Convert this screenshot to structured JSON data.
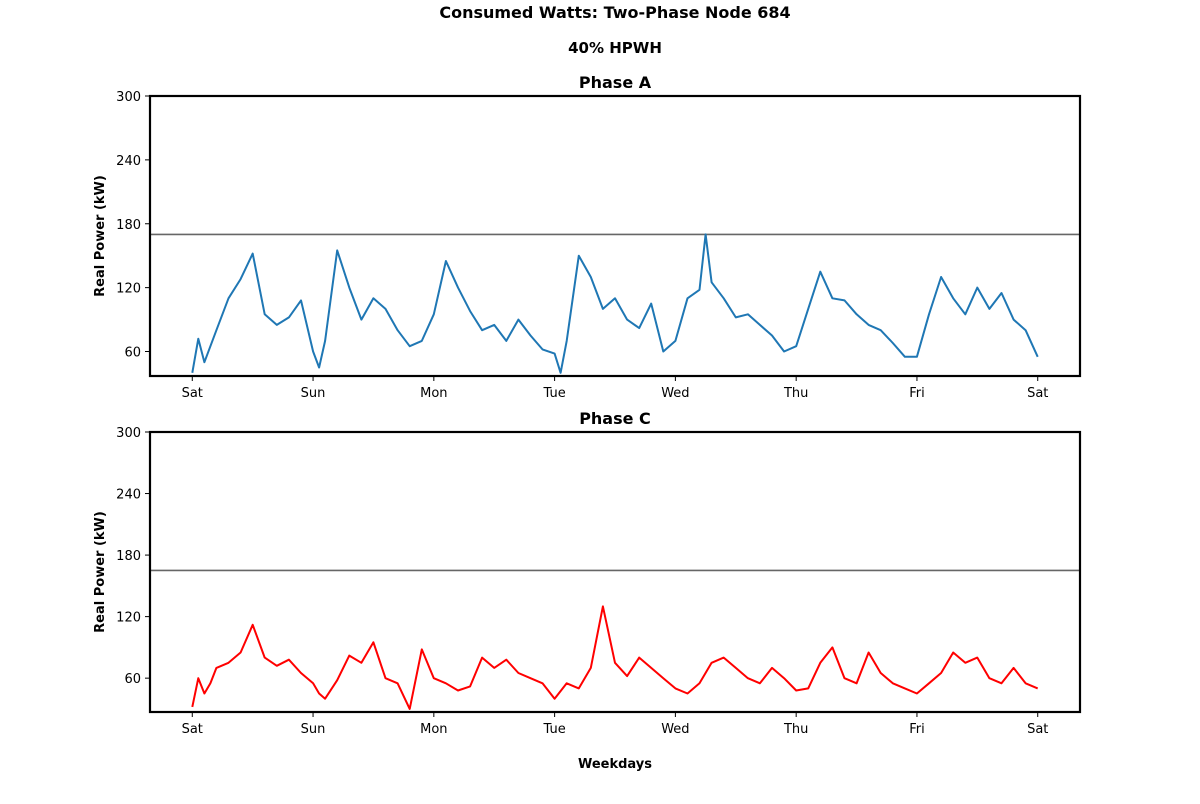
{
  "chart_data": {
    "type": "line",
    "title": "Consumed Watts: Two-Phase Node 684",
    "subtitle": "40% HPWH",
    "xlabel": "Weekdays",
    "categories": [
      "Sat",
      "Sun",
      "Mon",
      "Tue",
      "Wed",
      "Thu",
      "Fri",
      "Sat"
    ],
    "legend": "none",
    "grid": false,
    "panels": [
      {
        "title": "Phase A",
        "ylabel": "Real Power (kW)",
        "ylim": [
          37,
          300
        ],
        "yticks": [
          60,
          120,
          180,
          240,
          300
        ],
        "line_color": "#1f77b4",
        "threshold": 170,
        "threshold_color": "#666666",
        "x": [
          0.0,
          0.05,
          0.1,
          0.15,
          0.2,
          0.3,
          0.4,
          0.5,
          0.6,
          0.7,
          0.8,
          0.9,
          1.0,
          1.05,
          1.1,
          1.2,
          1.3,
          1.4,
          1.5,
          1.6,
          1.7,
          1.8,
          1.9,
          2.0,
          2.1,
          2.2,
          2.3,
          2.4,
          2.5,
          2.6,
          2.7,
          2.8,
          2.9,
          3.0,
          3.05,
          3.1,
          3.2,
          3.3,
          3.4,
          3.5,
          3.6,
          3.7,
          3.8,
          3.9,
          4.0,
          4.1,
          4.2,
          4.25,
          4.3,
          4.4,
          4.5,
          4.6,
          4.7,
          4.8,
          4.9,
          5.0,
          5.1,
          5.2,
          5.3,
          5.4,
          5.5,
          5.6,
          5.7,
          5.8,
          5.9,
          6.0,
          6.1,
          6.2,
          6.3,
          6.4,
          6.5,
          6.6,
          6.7,
          6.8,
          6.9,
          7.0
        ],
        "values": [
          40,
          72,
          50,
          65,
          80,
          110,
          128,
          152,
          95,
          85,
          92,
          108,
          60,
          45,
          70,
          155,
          120,
          90,
          110,
          100,
          80,
          65,
          70,
          95,
          145,
          120,
          98,
          80,
          85,
          70,
          90,
          75,
          62,
          58,
          40,
          70,
          150,
          130,
          100,
          110,
          90,
          82,
          105,
          60,
          70,
          110,
          118,
          170,
          125,
          110,
          92,
          95,
          85,
          75,
          60,
          65,
          100,
          135,
          110,
          108,
          95,
          85,
          80,
          68,
          55,
          55,
          95,
          130,
          110,
          95,
          120,
          100,
          115,
          90,
          80,
          55
        ]
      },
      {
        "title": "Phase C",
        "ylabel": "Real Power (kW)",
        "ylim": [
          27,
          300
        ],
        "yticks": [
          60,
          120,
          180,
          240,
          300
        ],
        "line_color": "#ff0000",
        "threshold": 165,
        "threshold_color": "#666666",
        "x": [
          0.0,
          0.05,
          0.1,
          0.15,
          0.2,
          0.3,
          0.4,
          0.5,
          0.6,
          0.7,
          0.8,
          0.9,
          1.0,
          1.05,
          1.1,
          1.2,
          1.3,
          1.4,
          1.5,
          1.6,
          1.7,
          1.8,
          1.9,
          2.0,
          2.1,
          2.2,
          2.3,
          2.4,
          2.5,
          2.6,
          2.7,
          2.8,
          2.9,
          3.0,
          3.1,
          3.2,
          3.3,
          3.4,
          3.5,
          3.6,
          3.7,
          3.8,
          3.9,
          4.0,
          4.1,
          4.2,
          4.3,
          4.4,
          4.5,
          4.6,
          4.7,
          4.8,
          4.9,
          5.0,
          5.1,
          5.2,
          5.3,
          5.4,
          5.5,
          5.6,
          5.7,
          5.8,
          5.9,
          6.0,
          6.1,
          6.2,
          6.3,
          6.4,
          6.5,
          6.6,
          6.7,
          6.8,
          6.9,
          7.0
        ],
        "values": [
          32,
          60,
          45,
          55,
          70,
          75,
          85,
          112,
          80,
          72,
          78,
          65,
          55,
          45,
          40,
          58,
          82,
          75,
          95,
          60,
          55,
          30,
          88,
          60,
          55,
          48,
          52,
          80,
          70,
          78,
          65,
          60,
          55,
          40,
          55,
          50,
          70,
          130,
          75,
          62,
          80,
          70,
          60,
          50,
          45,
          55,
          75,
          80,
          70,
          60,
          55,
          70,
          60,
          48,
          50,
          75,
          90,
          60,
          55,
          85,
          65,
          55,
          50,
          45,
          55,
          65,
          85,
          75,
          80,
          60,
          55,
          70,
          55,
          50
        ]
      }
    ]
  }
}
